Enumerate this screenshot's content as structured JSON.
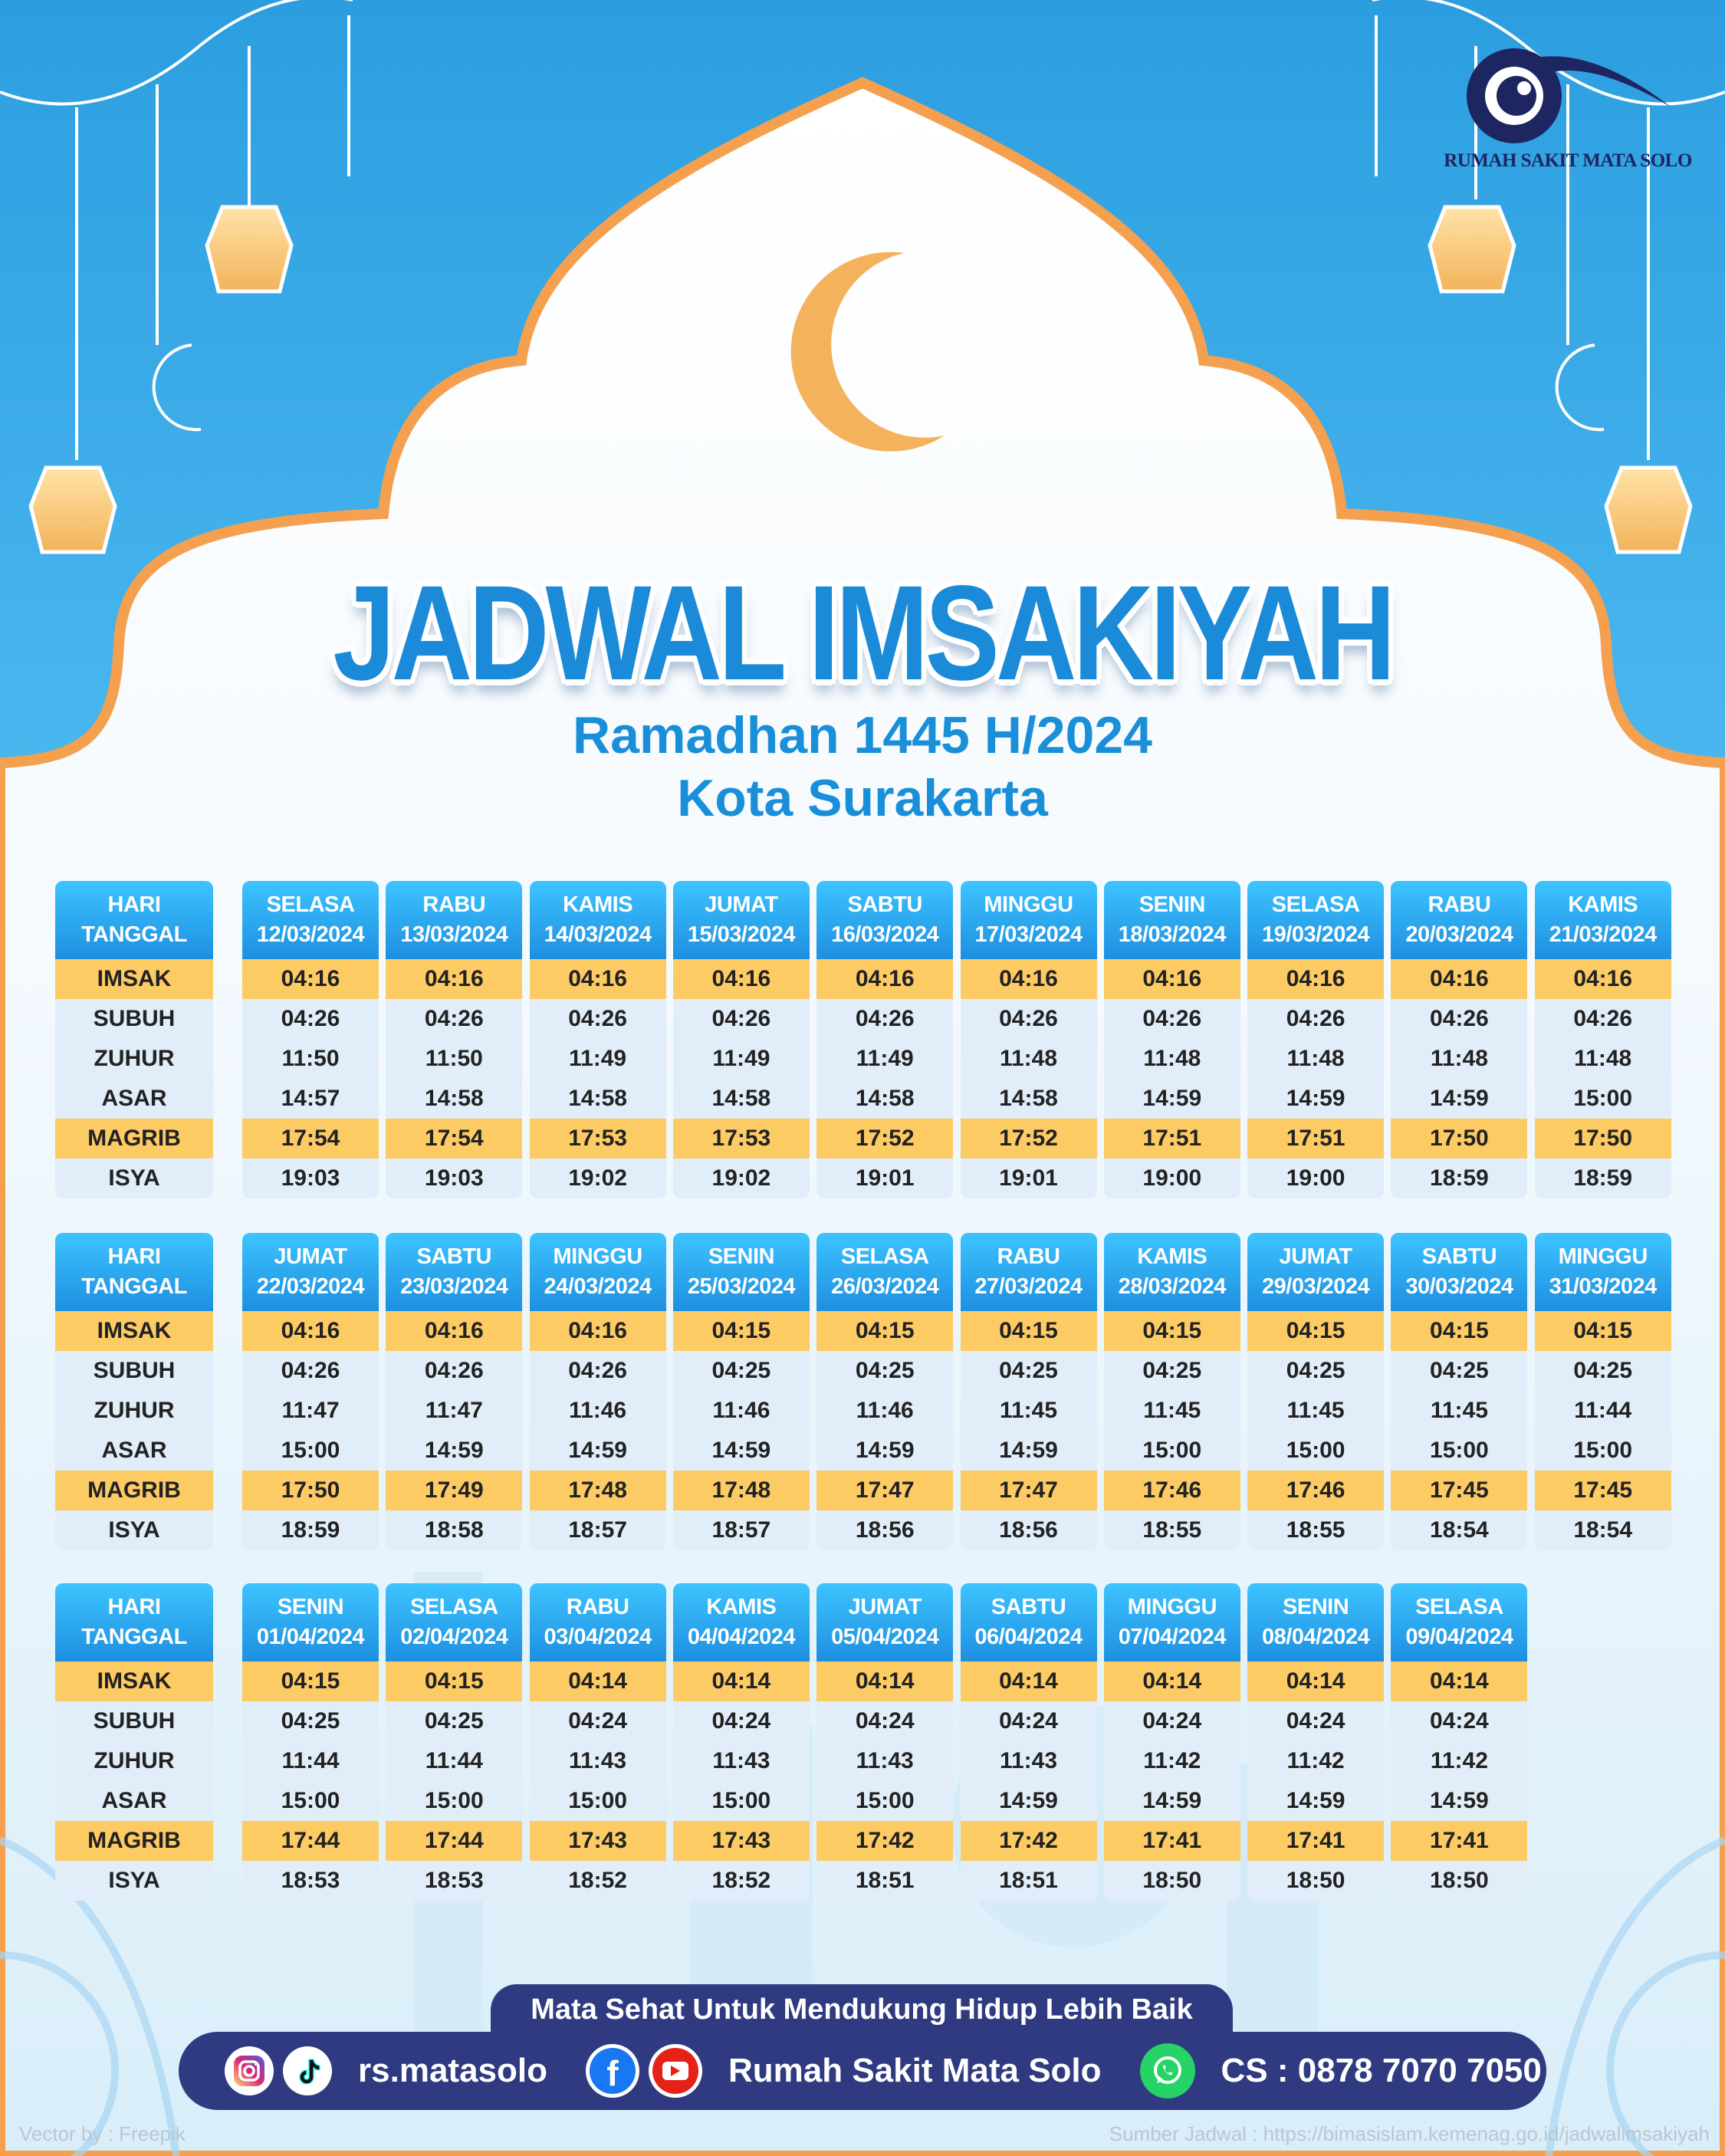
{
  "header": {
    "title": "JADWAL IMSAKIYAH",
    "subtitle_line1": "Ramadhan 1445 H/2024",
    "subtitle_line2": "Kota Surakarta"
  },
  "logo": {
    "name": "RUMAH SAKIT MATA SOLO"
  },
  "row_header": {
    "line1": "HARI",
    "line2": "TANGGAL"
  },
  "row_labels": [
    "IMSAK",
    "SUBUH",
    "ZUHUR",
    "ASAR",
    "MAGRIB",
    "ISYA"
  ],
  "colors": {
    "header_blue": "#1e8fe0",
    "highlight_row": "#fdcb64",
    "row_bg": "#e1eef9",
    "footer_navy": "#2f3a80",
    "frame_orange": "#f4a04f"
  },
  "tables": [
    {
      "days": [
        {
          "day": "SELASA",
          "date": "12/03/2024",
          "times": [
            "04:16",
            "04:26",
            "11:50",
            "14:57",
            "17:54",
            "19:03"
          ]
        },
        {
          "day": "RABU",
          "date": "13/03/2024",
          "times": [
            "04:16",
            "04:26",
            "11:50",
            "14:58",
            "17:54",
            "19:03"
          ]
        },
        {
          "day": "KAMIS",
          "date": "14/03/2024",
          "times": [
            "04:16",
            "04:26",
            "11:49",
            "14:58",
            "17:53",
            "19:02"
          ]
        },
        {
          "day": "JUMAT",
          "date": "15/03/2024",
          "times": [
            "04:16",
            "04:26",
            "11:49",
            "14:58",
            "17:53",
            "19:02"
          ]
        },
        {
          "day": "SABTU",
          "date": "16/03/2024",
          "times": [
            "04:16",
            "04:26",
            "11:49",
            "14:58",
            "17:52",
            "19:01"
          ]
        },
        {
          "day": "MINGGU",
          "date": "17/03/2024",
          "times": [
            "04:16",
            "04:26",
            "11:48",
            "14:58",
            "17:52",
            "19:01"
          ]
        },
        {
          "day": "SENIN",
          "date": "18/03/2024",
          "times": [
            "04:16",
            "04:26",
            "11:48",
            "14:59",
            "17:51",
            "19:00"
          ]
        },
        {
          "day": "SELASA",
          "date": "19/03/2024",
          "times": [
            "04:16",
            "04:26",
            "11:48",
            "14:59",
            "17:51",
            "19:00"
          ]
        },
        {
          "day": "RABU",
          "date": "20/03/2024",
          "times": [
            "04:16",
            "04:26",
            "11:48",
            "14:59",
            "17:50",
            "18:59"
          ]
        },
        {
          "day": "KAMIS",
          "date": "21/03/2024",
          "times": [
            "04:16",
            "04:26",
            "11:48",
            "15:00",
            "17:50",
            "18:59"
          ]
        }
      ]
    },
    {
      "days": [
        {
          "day": "JUMAT",
          "date": "22/03/2024",
          "times": [
            "04:16",
            "04:26",
            "11:47",
            "15:00",
            "17:50",
            "18:59"
          ]
        },
        {
          "day": "SABTU",
          "date": "23/03/2024",
          "times": [
            "04:16",
            "04:26",
            "11:47",
            "14:59",
            "17:49",
            "18:58"
          ]
        },
        {
          "day": "MINGGU",
          "date": "24/03/2024",
          "times": [
            "04:16",
            "04:26",
            "11:46",
            "14:59",
            "17:48",
            "18:57"
          ]
        },
        {
          "day": "SENIN",
          "date": "25/03/2024",
          "times": [
            "04:15",
            "04:25",
            "11:46",
            "14:59",
            "17:48",
            "18:57"
          ]
        },
        {
          "day": "SELASA",
          "date": "26/03/2024",
          "times": [
            "04:15",
            "04:25",
            "11:46",
            "14:59",
            "17:47",
            "18:56"
          ]
        },
        {
          "day": "RABU",
          "date": "27/03/2024",
          "times": [
            "04:15",
            "04:25",
            "11:45",
            "14:59",
            "17:47",
            "18:56"
          ]
        },
        {
          "day": "KAMIS",
          "date": "28/03/2024",
          "times": [
            "04:15",
            "04:25",
            "11:45",
            "15:00",
            "17:46",
            "18:55"
          ]
        },
        {
          "day": "JUMAT",
          "date": "29/03/2024",
          "times": [
            "04:15",
            "04:25",
            "11:45",
            "15:00",
            "17:46",
            "18:55"
          ]
        },
        {
          "day": "SABTU",
          "date": "30/03/2024",
          "times": [
            "04:15",
            "04:25",
            "11:45",
            "15:00",
            "17:45",
            "18:54"
          ]
        },
        {
          "day": "MINGGU",
          "date": "31/03/2024",
          "times": [
            "04:15",
            "04:25",
            "11:44",
            "15:00",
            "17:45",
            "18:54"
          ]
        }
      ]
    },
    {
      "days": [
        {
          "day": "SENIN",
          "date": "01/04/2024",
          "times": [
            "04:15",
            "04:25",
            "11:44",
            "15:00",
            "17:44",
            "18:53"
          ]
        },
        {
          "day": "SELASA",
          "date": "02/04/2024",
          "times": [
            "04:15",
            "04:25",
            "11:44",
            "15:00",
            "17:44",
            "18:53"
          ]
        },
        {
          "day": "RABU",
          "date": "03/04/2024",
          "times": [
            "04:14",
            "04:24",
            "11:43",
            "15:00",
            "17:43",
            "18:52"
          ]
        },
        {
          "day": "KAMIS",
          "date": "04/04/2024",
          "times": [
            "04:14",
            "04:24",
            "11:43",
            "15:00",
            "17:43",
            "18:52"
          ]
        },
        {
          "day": "JUMAT",
          "date": "05/04/2024",
          "times": [
            "04:14",
            "04:24",
            "11:43",
            "15:00",
            "17:42",
            "18:51"
          ]
        },
        {
          "day": "SABTU",
          "date": "06/04/2024",
          "times": [
            "04:14",
            "04:24",
            "11:43",
            "14:59",
            "17:42",
            "18:51"
          ]
        },
        {
          "day": "MINGGU",
          "date": "07/04/2024",
          "times": [
            "04:14",
            "04:24",
            "11:42",
            "14:59",
            "17:41",
            "18:50"
          ]
        },
        {
          "day": "SENIN",
          "date": "08/04/2024",
          "times": [
            "04:14",
            "04:24",
            "11:42",
            "14:59",
            "17:41",
            "18:50"
          ]
        },
        {
          "day": "SELASA",
          "date": "09/04/2024",
          "times": [
            "04:14",
            "04:24",
            "11:42",
            "14:59",
            "17:41",
            "18:50"
          ]
        }
      ]
    }
  ],
  "footer": {
    "tagline": "Mata Sehat Untuk Mendukung Hidup Lebih Baik",
    "social_handle": "rs.matasolo",
    "hospital_name": "Rumah Sakit Mata Solo",
    "contact": "CS : 0878 7070 7050",
    "icons": [
      "instagram-icon",
      "tiktok-icon",
      "facebook-icon",
      "youtube-icon",
      "whatsapp-icon"
    ],
    "credit": "Vector by : Freepik",
    "source": "Sumber Jadwal : https://bimasislam.kemenag.go.id/jadwalimsakiyah"
  }
}
